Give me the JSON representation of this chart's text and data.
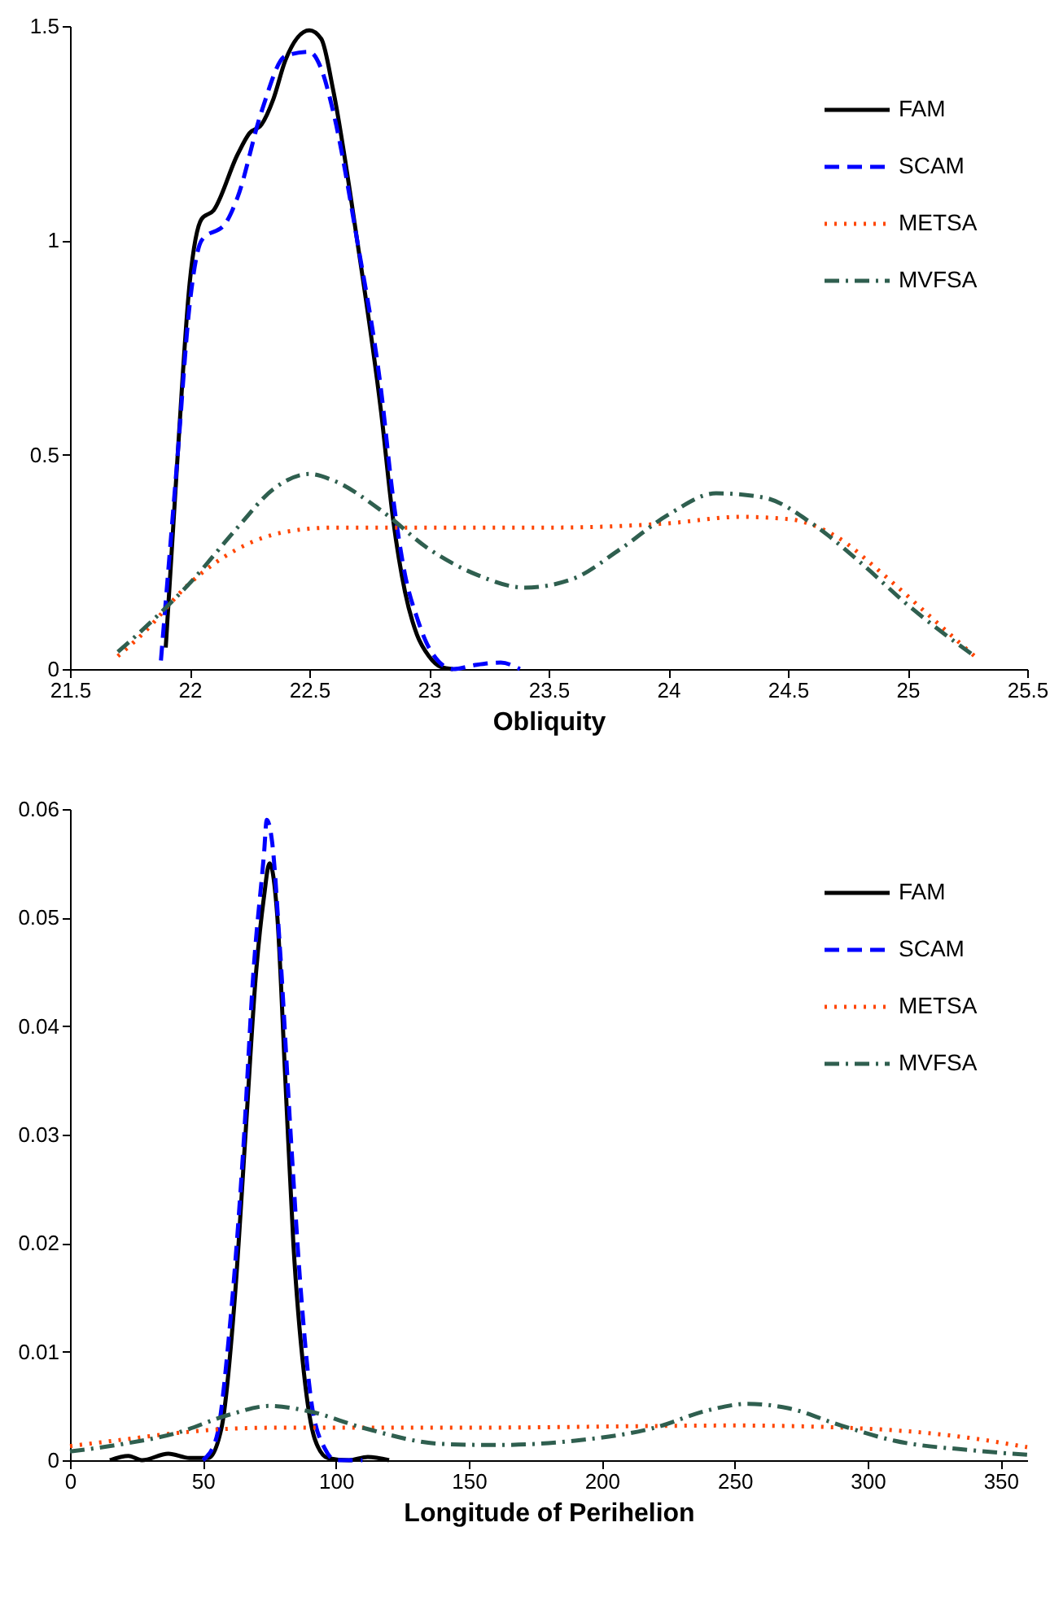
{
  "chart_data": [
    {
      "type": "line",
      "xlabel": "Obliquity",
      "xlim": [
        21.5,
        25.5
      ],
      "xticks": [
        21.5,
        22,
        22.5,
        23,
        23.5,
        24,
        24.5,
        25,
        25.5
      ],
      "ylim": [
        0,
        1.5
      ],
      "yticks": [
        0,
        0.5,
        1,
        1.5
      ],
      "legend": "top right",
      "grid": false,
      "series": [
        {
          "name": "FAM",
          "color": "#000000",
          "line_style": "solid",
          "x": [
            21.9,
            21.95,
            22.0,
            22.05,
            22.1,
            22.2,
            22.25,
            22.3,
            22.35,
            22.4,
            22.5,
            22.55,
            22.6,
            22.7,
            22.8,
            22.85,
            22.9,
            22.95,
            23.0,
            23.05,
            23.1
          ],
          "values": [
            0.05,
            0.5,
            0.9,
            1.05,
            1.07,
            1.2,
            1.25,
            1.27,
            1.33,
            1.42,
            1.49,
            1.47,
            1.35,
            1.0,
            0.6,
            0.35,
            0.18,
            0.08,
            0.03,
            0.005,
            0
          ]
        },
        {
          "name": "SCAM",
          "color": "#0000ff",
          "line_style": "dashed",
          "x": [
            21.88,
            21.95,
            22.0,
            22.05,
            22.15,
            22.2,
            22.3,
            22.4,
            22.5,
            22.55,
            22.6,
            22.7,
            22.8,
            22.85,
            22.9,
            22.95,
            23.0,
            23.1,
            23.2,
            23.3,
            23.38
          ],
          "values": [
            0.02,
            0.5,
            0.85,
            1.0,
            1.04,
            1.1,
            1.3,
            1.43,
            1.44,
            1.4,
            1.3,
            1.0,
            0.65,
            0.4,
            0.22,
            0.12,
            0.05,
            0.0,
            0.01,
            0.015,
            0.0
          ]
        },
        {
          "name": "METSA",
          "color": "#ff4500",
          "line_style": "dotted",
          "x": [
            21.7,
            21.8,
            22.0,
            22.2,
            22.4,
            22.6,
            23.0,
            23.5,
            24.0,
            24.3,
            24.5,
            24.7,
            24.9,
            25.1,
            25.28
          ],
          "values": [
            0.03,
            0.08,
            0.2,
            0.28,
            0.32,
            0.33,
            0.33,
            0.33,
            0.34,
            0.355,
            0.35,
            0.31,
            0.22,
            0.12,
            0.03
          ]
        },
        {
          "name": "MVFSA",
          "color": "#2f5f4f",
          "line_style": "dashdot",
          "x": [
            21.7,
            21.8,
            22.0,
            22.2,
            22.35,
            22.5,
            22.6,
            22.8,
            23.0,
            23.2,
            23.4,
            23.6,
            23.8,
            24.0,
            24.2,
            24.4,
            24.6,
            24.8,
            25.0,
            25.28
          ],
          "values": [
            0.04,
            0.09,
            0.2,
            0.33,
            0.42,
            0.455,
            0.44,
            0.37,
            0.28,
            0.22,
            0.19,
            0.21,
            0.28,
            0.36,
            0.41,
            0.4,
            0.34,
            0.25,
            0.15,
            0.03
          ]
        }
      ]
    },
    {
      "type": "line",
      "xlabel": "Longitude of Perihelion",
      "xlim": [
        0,
        360
      ],
      "xticks": [
        0,
        50,
        100,
        150,
        200,
        250,
        300,
        350
      ],
      "ylim": [
        0,
        0.06
      ],
      "yticks": [
        0,
        0.01,
        0.02,
        0.03,
        0.04,
        0.05,
        0.06
      ],
      "legend": "top right",
      "grid": false,
      "series": [
        {
          "name": "FAM",
          "color": "#000000",
          "line_style": "solid",
          "x": [
            15,
            22,
            27,
            37,
            45,
            52,
            57,
            62,
            66,
            70,
            73,
            75,
            78,
            81,
            84,
            88,
            92,
            97,
            105,
            112,
            120
          ],
          "values": [
            0,
            0.0004,
            0,
            0.0006,
            0.0002,
            0.0002,
            0.003,
            0.015,
            0.03,
            0.045,
            0.052,
            0.055,
            0.05,
            0.035,
            0.02,
            0.008,
            0.002,
            0.0002,
            0,
            0.0003,
            0
          ]
        },
        {
          "name": "SCAM",
          "color": "#0000ff",
          "line_style": "dashed",
          "x": [
            50,
            55,
            60,
            65,
            69,
            73,
            74,
            76,
            79,
            83,
            87,
            91,
            96,
            100,
            110
          ],
          "values": [
            0,
            0.002,
            0.012,
            0.028,
            0.045,
            0.056,
            0.059,
            0.057,
            0.047,
            0.03,
            0.015,
            0.005,
            0.001,
            0,
            0
          ]
        },
        {
          "name": "METSA",
          "color": "#ff4500",
          "line_style": "dotted",
          "x": [
            0,
            20,
            40,
            60,
            80,
            150,
            250,
            300,
            340,
            360
          ],
          "values": [
            0.0013,
            0.0019,
            0.0025,
            0.0029,
            0.003,
            0.003,
            0.0032,
            0.0029,
            0.002,
            0.0012
          ]
        },
        {
          "name": "MVFSA",
          "color": "#2f5f4f",
          "line_style": "dashdot",
          "x": [
            0,
            20,
            40,
            60,
            75,
            90,
            110,
            140,
            160,
            190,
            220,
            240,
            255,
            270,
            290,
            310,
            340,
            360
          ],
          "values": [
            0.0008,
            0.0015,
            0.0025,
            0.0042,
            0.005,
            0.0045,
            0.003,
            0.0015,
            0.0014,
            0.0018,
            0.003,
            0.0046,
            0.0052,
            0.0048,
            0.0032,
            0.0018,
            0.0009,
            0.0005
          ]
        }
      ]
    }
  ]
}
